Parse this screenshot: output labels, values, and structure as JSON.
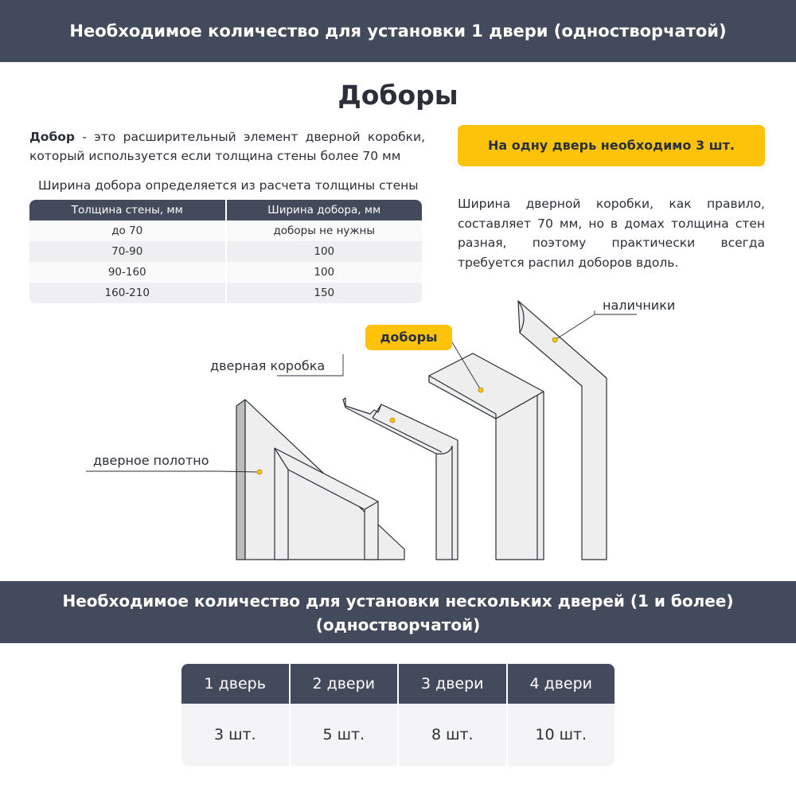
{
  "header": {
    "title": "Необходимое количество для установки 1 двери (одностворчатой)"
  },
  "section": {
    "title": "Доборы",
    "intro_term": "Добор",
    "intro_text": " - это расширительный элемент дверной коробки, который используется если толщина стены более 70 мм",
    "table_caption": "Ширина добора определяется из расчета толщины стены",
    "table": {
      "columns": [
        "Толщина стены, мм",
        "Ширина добора, мм"
      ],
      "rows": [
        [
          "до 70",
          "доборы не нужны"
        ],
        [
          "70-90",
          "100"
        ],
        [
          "90-160",
          "100"
        ],
        [
          "160-210",
          "150"
        ]
      ]
    },
    "badge": "На одну дверь необходимо 3 шт.",
    "note": "Ширина дверной коробки, как правило, составляет 70 мм, но в домах толщина стен разная, поэтому практически всегда требуется распил доборов вдоль."
  },
  "diagram": {
    "labels": {
      "door_leaf": "дверное полотно",
      "door_frame": "дверная коробка",
      "extensions": "доборы",
      "casings": "наличники"
    },
    "accent": "#fcc30a"
  },
  "footer": {
    "title_line1": "Необходимое количество для установки нескольких дверей (1 и более)",
    "title_line2": "(одностворчатой)",
    "quantities": [
      {
        "doors": "1 дверь",
        "qty": "3 шт."
      },
      {
        "doors": "2 двери",
        "qty": "5 шт."
      },
      {
        "doors": "3 двери",
        "qty": "8 шт."
      },
      {
        "doors": "4 двери",
        "qty": "10 шт."
      }
    ]
  },
  "colors": {
    "band": "#434a5b",
    "accent": "#fcc30a"
  }
}
